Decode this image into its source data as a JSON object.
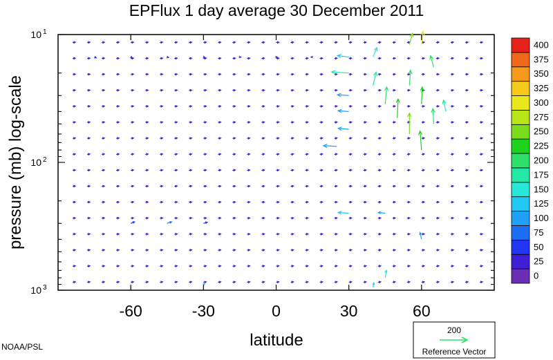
{
  "chart_data": {
    "type": "vector-field",
    "title": "EPFlux  1 day average  30 December 2011",
    "xlabel": "latitude",
    "ylabel": "pressure (mb)  log-scale",
    "xlim": [
      -90,
      90
    ],
    "ylim": [
      1000,
      10
    ],
    "y_scale": "log",
    "x_ticks": [
      {
        "value": -60,
        "label": "-60"
      },
      {
        "value": -30,
        "label": "-30"
      },
      {
        "value": 0,
        "label": "0"
      },
      {
        "value": 30,
        "label": "30"
      },
      {
        "value": 60,
        "label": "60"
      }
    ],
    "y_ticks": [
      {
        "value": 10,
        "base": "10",
        "exp": "1"
      },
      {
        "value": 100,
        "base": "10",
        "exp": "2"
      },
      {
        "value": 1000,
        "base": "10",
        "exp": "3"
      }
    ],
    "colorbar": {
      "levels": [
        "0",
        "25",
        "50",
        "75",
        "100",
        "125",
        "150",
        "175",
        "200",
        "225",
        "250",
        "275",
        "300",
        "325",
        "350",
        "375",
        "400"
      ],
      "colors": [
        "#6a2fb5",
        "#3f1fd6",
        "#2036f0",
        "#1c6ff4",
        "#1ea0f7",
        "#22c9f3",
        "#26e8d8",
        "#23e8a6",
        "#2fe06a",
        "#1ed21e",
        "#7adc1c",
        "#b8e41a",
        "#e8e81a",
        "#f5c81a",
        "#f59a1a",
        "#f0681a",
        "#e8221a"
      ]
    },
    "reference_vector": {
      "magnitude": "200",
      "label": "Reference Vector"
    },
    "credit": "NOAA/PSL",
    "vectors": [
      {
        "lat": -75,
        "p": 15,
        "u": 5,
        "v": -2,
        "mag": 40
      },
      {
        "lat": -60,
        "p": 15,
        "u": 4,
        "v": -2,
        "mag": 40
      },
      {
        "lat": -45,
        "p": 15,
        "u": 4,
        "v": -1,
        "mag": 40
      },
      {
        "lat": -30,
        "p": 15,
        "u": 4,
        "v": -1,
        "mag": 40
      },
      {
        "lat": -15,
        "p": 15,
        "u": 3,
        "v": 0,
        "mag": 35
      },
      {
        "lat": 0,
        "p": 15,
        "u": 3,
        "v": 0,
        "mag": 35
      },
      {
        "lat": 15,
        "p": 15,
        "u": -4,
        "v": 0,
        "mag": 45
      },
      {
        "lat": 30,
        "p": 15,
        "u": -30,
        "v": 4,
        "mag": 120
      },
      {
        "lat": 30,
        "p": 20,
        "u": -45,
        "v": 3,
        "mag": 175
      },
      {
        "lat": 30,
        "p": 30,
        "u": -30,
        "v": 2,
        "mag": 110
      },
      {
        "lat": 30,
        "p": 40,
        "u": -28,
        "v": 2,
        "mag": 105
      },
      {
        "lat": 30,
        "p": 55,
        "u": -28,
        "v": 2,
        "mag": 100
      },
      {
        "lat": 25,
        "p": 75,
        "u": -35,
        "v": 2,
        "mag": 105
      },
      {
        "lat": 40,
        "p": 15,
        "u": 10,
        "v": 25,
        "mag": 160
      },
      {
        "lat": 40,
        "p": 25,
        "u": 8,
        "v": 35,
        "mag": 175
      },
      {
        "lat": 45,
        "p": 35,
        "u": 4,
        "v": 45,
        "mag": 200
      },
      {
        "lat": 50,
        "p": 45,
        "u": 2,
        "v": 50,
        "mag": 225
      },
      {
        "lat": 55,
        "p": 60,
        "u": 0,
        "v": 55,
        "mag": 240
      },
      {
        "lat": 60,
        "p": 80,
        "u": -4,
        "v": 50,
        "mag": 225
      },
      {
        "lat": 55,
        "p": 25,
        "u": 3,
        "v": 40,
        "mag": 200
      },
      {
        "lat": 60,
        "p": 35,
        "u": 2,
        "v": 45,
        "mag": 215
      },
      {
        "lat": 65,
        "p": 50,
        "u": -2,
        "v": 40,
        "mag": 200
      },
      {
        "lat": 70,
        "p": 40,
        "u": -6,
        "v": 30,
        "mag": 180
      },
      {
        "lat": 55,
        "p": 12,
        "u": 8,
        "v": 30,
        "mag": 260
      },
      {
        "lat": 60,
        "p": 12,
        "u": 4,
        "v": 35,
        "mag": 300
      },
      {
        "lat": 65,
        "p": 18,
        "u": -8,
        "v": 30,
        "mag": 210
      },
      {
        "lat": -60,
        "p": 300,
        "u": 10,
        "v": 4,
        "mag": 60
      },
      {
        "lat": -45,
        "p": 300,
        "u": 12,
        "v": 4,
        "mag": 70
      },
      {
        "lat": -30,
        "p": 300,
        "u": 10,
        "v": 3,
        "mag": 60
      },
      {
        "lat": 30,
        "p": 250,
        "u": -28,
        "v": 2,
        "mag": 130
      },
      {
        "lat": 45,
        "p": 250,
        "u": -18,
        "v": 2,
        "mag": 100
      },
      {
        "lat": 60,
        "p": 400,
        "u": -4,
        "v": 18,
        "mag": 90
      },
      {
        "lat": 45,
        "p": 800,
        "u": 3,
        "v": 20,
        "mag": 140
      },
      {
        "lat": -30,
        "p": 950,
        "u": 2,
        "v": 12,
        "mag": 120
      },
      {
        "lat": 40,
        "p": 950,
        "u": 2,
        "v": 12,
        "mag": 130
      }
    ]
  }
}
